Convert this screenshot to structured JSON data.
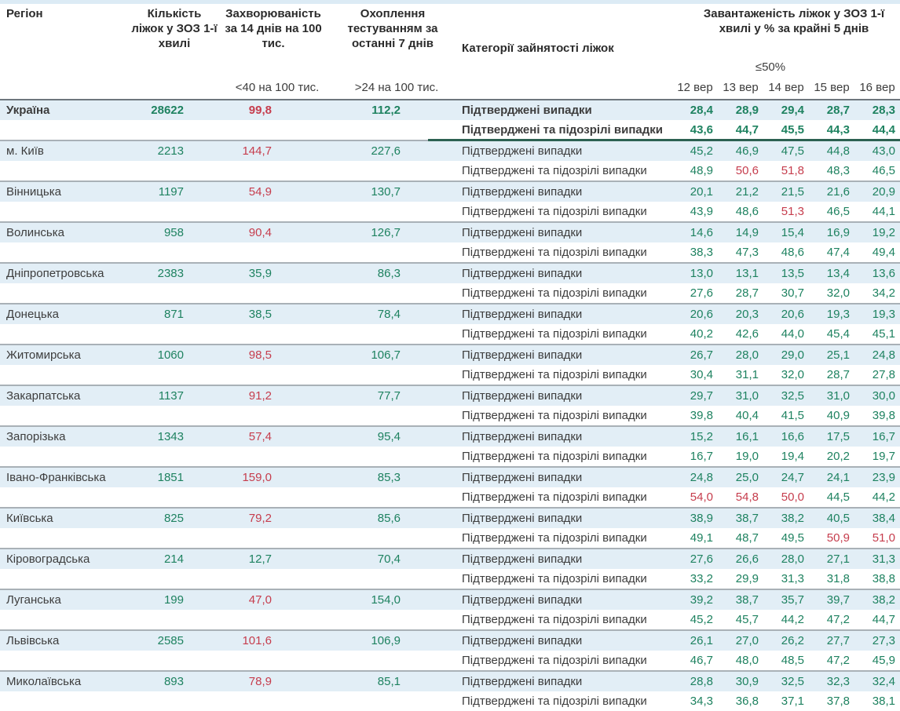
{
  "accent_colors": {
    "value_ok_green": "#1e8260",
    "value_alert_red": "#c63d4d",
    "row_highlight_blue": "#e2eef6"
  },
  "table": {
    "headers": {
      "region": "Регіон",
      "beds": "Кількість ліжок у ЗОЗ 1-ї хвилі",
      "incidence": "Захворюваність за 14 днів на 100 тис.",
      "testing": "Охоплення тестуванням за останні 7 днів",
      "category": "Категорії зайнятості ліжок",
      "occupancy": "Завантаженість ліжок у ЗОЗ 1-ї хвилі у % за крайні 5 днів",
      "incidence_threshold": "<40 на 100 тис.",
      "testing_threshold": ">24 на 100 тис.",
      "occupancy_threshold": "≤50%",
      "dates": [
        "12 вер",
        "13 вер",
        "14 вер",
        "15 вер",
        "16 вер"
      ]
    },
    "category_labels": {
      "confirmed": "Підтверджені випадки",
      "confirmed_suspected": "Підтверджені та підозрілі випадки"
    },
    "rows": [
      {
        "region": "Україна",
        "bold": true,
        "beds": "28622",
        "incidence": "99,8",
        "incidence_red": true,
        "testing": "112,2",
        "confirmed": [
          "28,4",
          "28,9",
          "29,4",
          "28,7",
          "28,3"
        ],
        "confirmed_red": [],
        "suspected": [
          "43,6",
          "44,7",
          "45,5",
          "44,3",
          "44,4"
        ],
        "suspected_red": []
      },
      {
        "region": "м. Київ",
        "bold": false,
        "beds": "2213",
        "incidence": "144,7",
        "incidence_red": true,
        "testing": "227,6",
        "confirmed": [
          "45,2",
          "46,9",
          "47,5",
          "44,8",
          "43,0"
        ],
        "confirmed_red": [],
        "suspected": [
          "48,9",
          "50,6",
          "51,8",
          "48,3",
          "46,5"
        ],
        "suspected_red": [
          1,
          2
        ]
      },
      {
        "region": "Вінницька",
        "bold": false,
        "beds": "1197",
        "incidence": "54,9",
        "incidence_red": true,
        "testing": "130,7",
        "confirmed": [
          "20,1",
          "21,2",
          "21,5",
          "21,6",
          "20,9"
        ],
        "confirmed_red": [],
        "suspected": [
          "43,9",
          "48,6",
          "51,3",
          "46,5",
          "44,1"
        ],
        "suspected_red": [
          2
        ]
      },
      {
        "region": "Волинська",
        "bold": false,
        "beds": "958",
        "incidence": "90,4",
        "incidence_red": true,
        "testing": "126,7",
        "confirmed": [
          "14,6",
          "14,9",
          "15,4",
          "16,9",
          "19,2"
        ],
        "confirmed_red": [],
        "suspected": [
          "38,3",
          "47,3",
          "48,6",
          "47,4",
          "49,4"
        ],
        "suspected_red": []
      },
      {
        "region": "Дніпропетровська",
        "bold": false,
        "beds": "2383",
        "incidence": "35,9",
        "incidence_red": false,
        "testing": "86,3",
        "confirmed": [
          "13,0",
          "13,1",
          "13,5",
          "13,4",
          "13,6"
        ],
        "confirmed_red": [],
        "suspected": [
          "27,6",
          "28,7",
          "30,7",
          "32,0",
          "34,2"
        ],
        "suspected_red": []
      },
      {
        "region": "Донецька",
        "bold": false,
        "beds": "871",
        "incidence": "38,5",
        "incidence_red": false,
        "testing": "78,4",
        "confirmed": [
          "20,6",
          "20,3",
          "20,6",
          "19,3",
          "19,3"
        ],
        "confirmed_red": [],
        "suspected": [
          "40,2",
          "42,6",
          "44,0",
          "45,4",
          "45,1"
        ],
        "suspected_red": []
      },
      {
        "region": "Житомирська",
        "bold": false,
        "beds": "1060",
        "incidence": "98,5",
        "incidence_red": true,
        "testing": "106,7",
        "confirmed": [
          "26,7",
          "28,0",
          "29,0",
          "25,1",
          "24,8"
        ],
        "confirmed_red": [],
        "suspected": [
          "30,4",
          "31,1",
          "32,0",
          "28,7",
          "27,8"
        ],
        "suspected_red": []
      },
      {
        "region": "Закарпатська",
        "bold": false,
        "beds": "1137",
        "incidence": "91,2",
        "incidence_red": true,
        "testing": "77,7",
        "confirmed": [
          "29,7",
          "31,0",
          "32,5",
          "31,0",
          "30,0"
        ],
        "confirmed_red": [],
        "suspected": [
          "39,8",
          "40,4",
          "41,5",
          "40,9",
          "39,8"
        ],
        "suspected_red": []
      },
      {
        "region": "Запорізька",
        "bold": false,
        "beds": "1343",
        "incidence": "57,4",
        "incidence_red": true,
        "testing": "95,4",
        "confirmed": [
          "15,2",
          "16,1",
          "16,6",
          "17,5",
          "16,7"
        ],
        "confirmed_red": [],
        "suspected": [
          "16,7",
          "19,0",
          "19,4",
          "20,2",
          "19,7"
        ],
        "suspected_red": []
      },
      {
        "region": "Івано-Франківська",
        "bold": false,
        "beds": "1851",
        "incidence": "159,0",
        "incidence_red": true,
        "testing": "85,3",
        "confirmed": [
          "24,8",
          "25,0",
          "24,7",
          "24,1",
          "23,9"
        ],
        "confirmed_red": [],
        "suspected": [
          "54,0",
          "54,8",
          "50,0",
          "44,5",
          "44,2"
        ],
        "suspected_red": [
          0,
          1,
          2
        ]
      },
      {
        "region": "Київська",
        "bold": false,
        "beds": "825",
        "incidence": "79,2",
        "incidence_red": true,
        "testing": "85,6",
        "confirmed": [
          "38,9",
          "38,7",
          "38,2",
          "40,5",
          "38,4"
        ],
        "confirmed_red": [],
        "suspected": [
          "49,1",
          "48,7",
          "49,5",
          "50,9",
          "51,0"
        ],
        "suspected_red": [
          3,
          4
        ]
      },
      {
        "region": "Кіровоградська",
        "bold": false,
        "beds": "214",
        "incidence": "12,7",
        "incidence_red": false,
        "testing": "70,4",
        "confirmed": [
          "27,6",
          "26,6",
          "28,0",
          "27,1",
          "31,3"
        ],
        "confirmed_red": [],
        "suspected": [
          "33,2",
          "29,9",
          "31,3",
          "31,8",
          "38,8"
        ],
        "suspected_red": []
      },
      {
        "region": "Луганська",
        "bold": false,
        "beds": "199",
        "incidence": "47,0",
        "incidence_red": true,
        "testing": "154,0",
        "confirmed": [
          "39,2",
          "38,7",
          "35,7",
          "39,7",
          "38,2"
        ],
        "confirmed_red": [],
        "suspected": [
          "45,2",
          "45,7",
          "44,2",
          "47,2",
          "44,7"
        ],
        "suspected_red": []
      },
      {
        "region": "Львівська",
        "bold": false,
        "beds": "2585",
        "incidence": "101,6",
        "incidence_red": true,
        "testing": "106,9",
        "confirmed": [
          "26,1",
          "27,0",
          "26,2",
          "27,7",
          "27,3"
        ],
        "confirmed_red": [],
        "suspected": [
          "46,7",
          "48,0",
          "48,5",
          "47,2",
          "45,9"
        ],
        "suspected_red": []
      },
      {
        "region": "Миколаївська",
        "bold": false,
        "beds": "893",
        "incidence": "78,9",
        "incidence_red": true,
        "testing": "85,1",
        "confirmed": [
          "28,8",
          "30,9",
          "32,5",
          "32,3",
          "32,4"
        ],
        "confirmed_red": [],
        "suspected": [
          "34,3",
          "36,8",
          "37,1",
          "37,8",
          "38,1"
        ],
        "suspected_red": []
      }
    ]
  }
}
